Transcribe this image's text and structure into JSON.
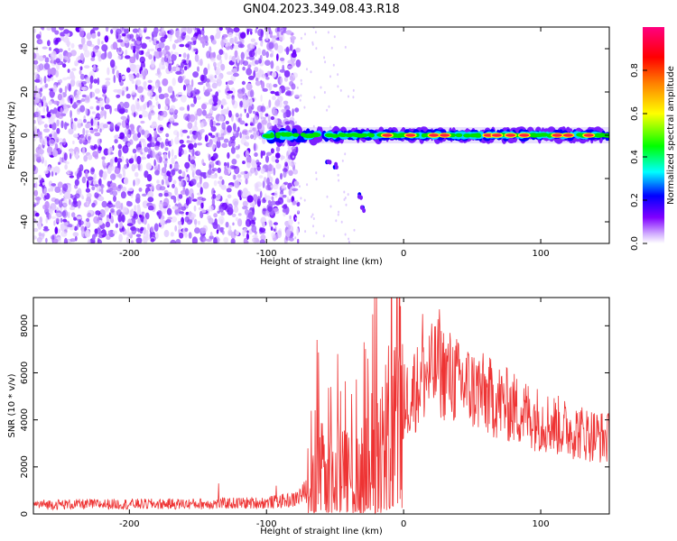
{
  "figure": {
    "title": "GN04.2023.349.08.43.R18"
  },
  "chart_data": [
    {
      "type": "heatmap",
      "title": "",
      "xlabel": "Height of straight line (km)",
      "ylabel": "Frequency (Hz)",
      "xlim": [
        -270,
        150
      ],
      "ylim": [
        -50,
        50
      ],
      "x_ticks": [
        -200,
        -100,
        0,
        100
      ],
      "y_ticks": [
        -40,
        -20,
        0,
        20,
        40
      ],
      "colorbar": {
        "label": "Normalized spectral amplitude",
        "range": [
          0.0,
          1.0
        ],
        "ticks": [
          0.0,
          0.2,
          0.4,
          0.6,
          0.8
        ],
        "colormap": [
          "#ffffff",
          "#8000ff",
          "#0000ff",
          "#00ffff",
          "#00ff00",
          "#ffff00",
          "#ff8000",
          "#ff0000",
          "#ff0080"
        ]
      },
      "noise_region_x": [
        -270,
        -82
      ],
      "signal_band": {
        "center_freq_hz": 0,
        "start_km": -108,
        "end_km": 150,
        "trail_points": [
          {
            "x": -55,
            "y": -12
          },
          {
            "x": -50,
            "y": -14
          },
          {
            "x": -32,
            "y": -28
          },
          {
            "x": -30,
            "y": -34
          }
        ]
      }
    },
    {
      "type": "line",
      "title": "",
      "xlabel": "Height of straight line (km)",
      "ylabel": "SNR (10 * v/v)",
      "xlim": [
        -270,
        150
      ],
      "ylim": [
        0,
        9200
      ],
      "x_ticks": [
        -200,
        -100,
        0,
        100
      ],
      "y_ticks": [
        0,
        2000,
        4000,
        6000,
        8000
      ],
      "series": [
        {
          "color": "#ee3333",
          "envelope": [
            {
              "x": -270,
              "y": 400
            },
            {
              "x": -200,
              "y": 420
            },
            {
              "x": -150,
              "y": 430
            },
            {
              "x": -100,
              "y": 480
            },
            {
              "x": -80,
              "y": 600
            },
            {
              "x": -70,
              "y": 1000
            },
            {
              "x": -62,
              "y": 2200
            },
            {
              "x": -55,
              "y": 1800
            },
            {
              "x": -45,
              "y": 2000
            },
            {
              "x": -35,
              "y": 1800
            },
            {
              "x": -25,
              "y": 2600
            },
            {
              "x": -15,
              "y": 3800
            },
            {
              "x": -5,
              "y": 4600
            },
            {
              "x": 5,
              "y": 5000
            },
            {
              "x": 15,
              "y": 5800
            },
            {
              "x": 25,
              "y": 6200
            },
            {
              "x": 35,
              "y": 5800
            },
            {
              "x": 50,
              "y": 5300
            },
            {
              "x": 65,
              "y": 4900
            },
            {
              "x": 80,
              "y": 4500
            },
            {
              "x": 100,
              "y": 4000
            },
            {
              "x": 120,
              "y": 3600
            },
            {
              "x": 150,
              "y": 3200
            }
          ],
          "peaks": [
            {
              "x": -135,
              "y": 1300
            },
            {
              "x": -93,
              "y": 1200
            },
            {
              "x": -63,
              "y": 7400
            },
            {
              "x": -53,
              "y": 5400
            },
            {
              "x": -48,
              "y": 6800
            },
            {
              "x": -38,
              "y": 5100
            },
            {
              "x": -29,
              "y": 7300
            },
            {
              "x": -26,
              "y": 6600
            },
            {
              "x": -17,
              "y": 4900
            },
            {
              "x": -5,
              "y": 7800
            },
            {
              "x": -5,
              "y": 9200
            },
            {
              "x": 8,
              "y": 6800
            },
            {
              "x": 14,
              "y": 8500
            },
            {
              "x": 26,
              "y": 8700
            },
            {
              "x": 40,
              "y": 7200
            },
            {
              "x": 55,
              "y": 6500
            }
          ]
        }
      ]
    }
  ]
}
